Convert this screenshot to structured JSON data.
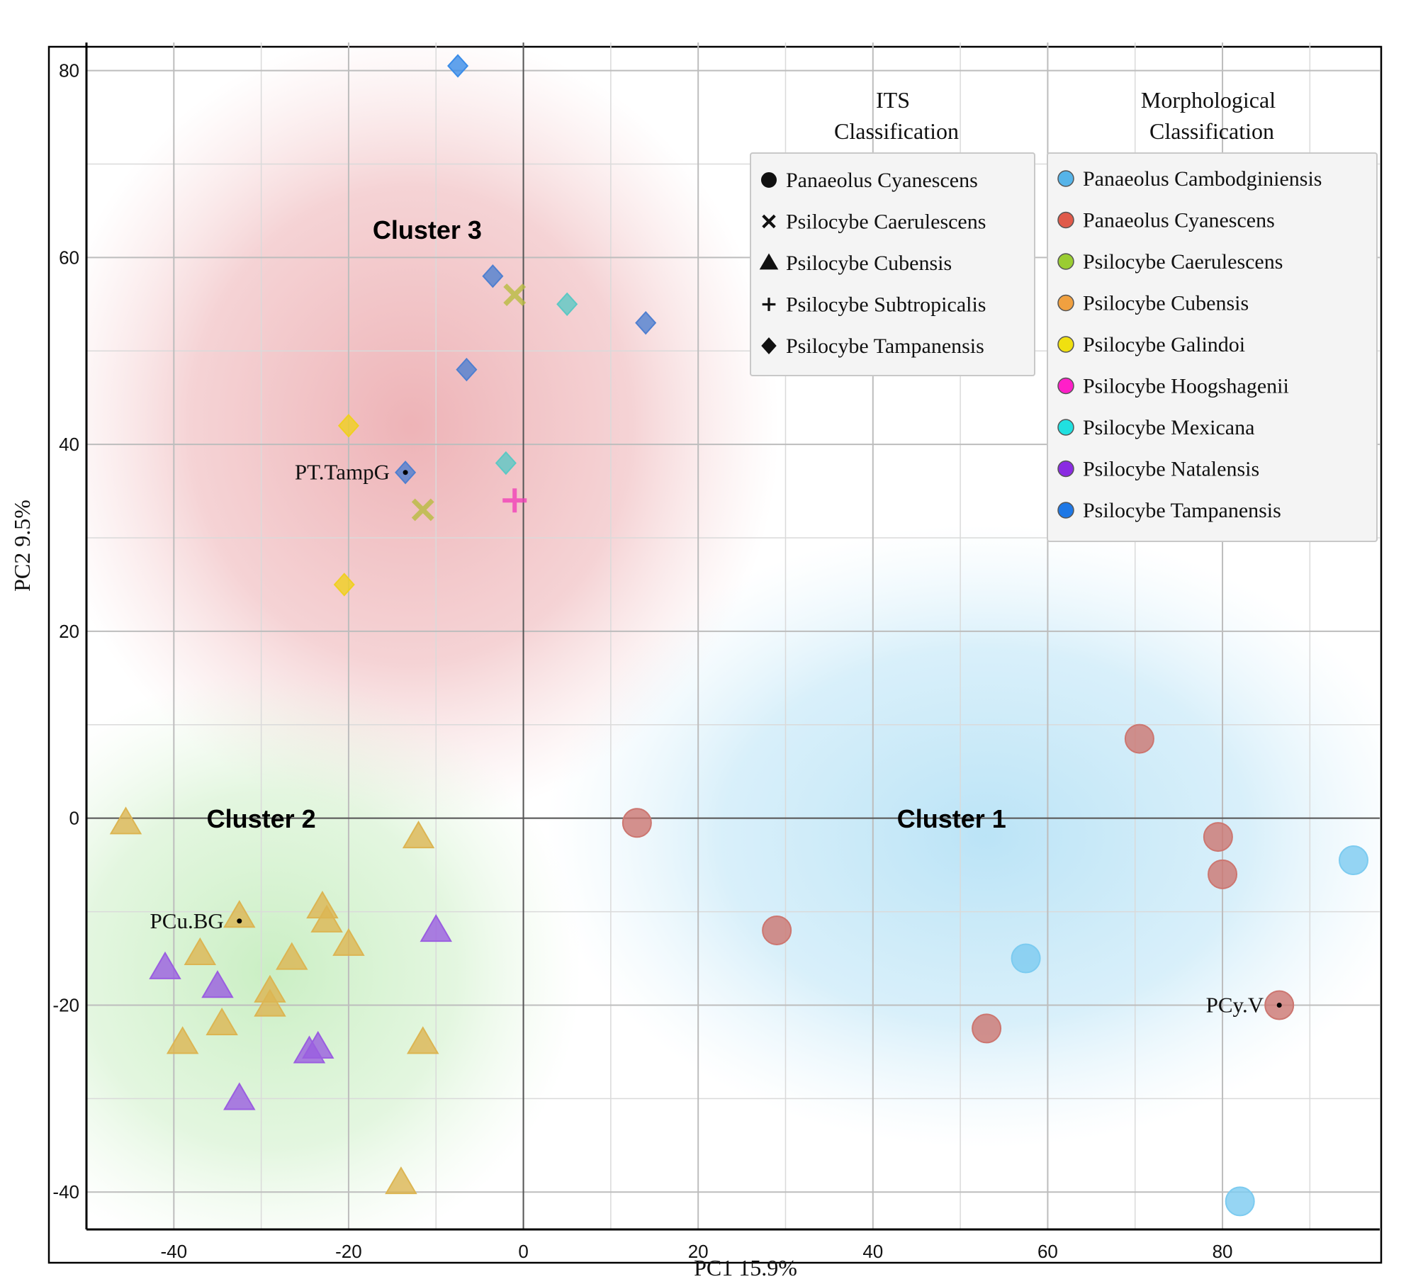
{
  "chart_data": {
    "type": "scatter",
    "xlabel": "PC1 15.9%",
    "ylabel": "PC2 9.5%",
    "xlim": [
      -50,
      98
    ],
    "ylim": [
      -44,
      83
    ],
    "x_ticks": [
      -40,
      -20,
      0,
      20,
      40,
      60,
      80
    ],
    "y_ticks": [
      -40,
      -20,
      0,
      20,
      40,
      60,
      80
    ],
    "grid": true,
    "clusters": [
      {
        "name": "Cluster 1",
        "label_at": [
          49,
          -1
        ]
      },
      {
        "name": "Cluster 2",
        "label_at": [
          -30,
          -1
        ]
      },
      {
        "name": "Cluster 3",
        "label_at": [
          -11,
          62
        ]
      }
    ],
    "annotations": [
      {
        "text": "PT.TampG",
        "at": [
          -13.5,
          37
        ]
      },
      {
        "text": "PCu.BG",
        "at": [
          -32.5,
          -11
        ]
      },
      {
        "text": "PCy.V",
        "at": [
          86.5,
          -20
        ]
      }
    ],
    "legend_its": {
      "title_line1": "ITS",
      "title_line2": "Classification",
      "items": [
        {
          "label": "Panaeolus Cyanescens",
          "shape": "circle"
        },
        {
          "label": "Psilocybe Caerulescens",
          "shape": "x"
        },
        {
          "label": "Psilocybe Cubensis",
          "shape": "triangle"
        },
        {
          "label": "Psilocybe Subtropicalis",
          "shape": "plus"
        },
        {
          "label": "Psilocybe Tampanensis",
          "shape": "diamond"
        }
      ]
    },
    "legend_morph": {
      "title_line1": "Morphological",
      "title_line2": "Classification",
      "items": [
        {
          "label": "Panaeolus Cambodginiensis",
          "color": "#56b4e9"
        },
        {
          "label": "Panaeolus Cyanescens",
          "color": "#e05a4a"
        },
        {
          "label": "Psilocybe Caerulescens",
          "color": "#9acd32"
        },
        {
          "label": "Psilocybe Cubensis",
          "color": "#f0a040"
        },
        {
          "label": "Psilocybe Galindoi",
          "color": "#f0e010"
        },
        {
          "label": "Psilocybe Hoogshagenii",
          "color": "#ff1fc8"
        },
        {
          "label": "Psilocybe Mexicana",
          "color": "#20e0e0"
        },
        {
          "label": "Psilocybe Natalensis",
          "color": "#8a2be2"
        },
        {
          "label": "Psilocybe Tampanensis",
          "color": "#1e78e6"
        }
      ]
    },
    "point_colors": {
      "circle_cambodginiensis": "#7ccbf0",
      "circle_cyanescens": "#cc7670",
      "tri_cubensis": "#dcb552",
      "tri_natalensis": "#9a5ee0",
      "diamond_tampanensis_a": "#3a8ce8",
      "diamond_tampanensis_b": "#4f7fd0",
      "diamond_mexicana": "#5cc8c4",
      "diamond_galindoi": "#f0d020",
      "x_caerulescens": "#b8bc40",
      "plus_subtropicalis": "#f040b8"
    },
    "points": [
      {
        "x": -7.5,
        "y": 80.5,
        "shape": "diamond",
        "color": "diamond_tampanensis_a"
      },
      {
        "x": -3.5,
        "y": 58,
        "shape": "diamond",
        "color": "diamond_tampanensis_b"
      },
      {
        "x": -1,
        "y": 56,
        "shape": "x",
        "color": "x_caerulescens"
      },
      {
        "x": 5,
        "y": 55,
        "shape": "diamond",
        "color": "diamond_mexicana"
      },
      {
        "x": 14,
        "y": 53,
        "shape": "diamond",
        "color": "diamond_tampanensis_b"
      },
      {
        "x": -6.5,
        "y": 48,
        "shape": "diamond",
        "color": "diamond_tampanensis_b"
      },
      {
        "x": -20,
        "y": 42,
        "shape": "diamond",
        "color": "diamond_galindoi"
      },
      {
        "x": -13.5,
        "y": 37,
        "shape": "diamond",
        "color": "diamond_tampanensis_b"
      },
      {
        "x": -2,
        "y": 38,
        "shape": "diamond",
        "color": "diamond_mexicana"
      },
      {
        "x": -11.5,
        "y": 33,
        "shape": "x",
        "color": "x_caerulescens"
      },
      {
        "x": -1,
        "y": 34,
        "shape": "plus",
        "color": "plus_subtropicalis"
      },
      {
        "x": -20.5,
        "y": 25,
        "shape": "diamond",
        "color": "diamond_galindoi"
      },
      {
        "x": 70.5,
        "y": 8.5,
        "shape": "circle",
        "color": "circle_cyanescens"
      },
      {
        "x": 13,
        "y": -0.5,
        "shape": "circle",
        "color": "circle_cyanescens"
      },
      {
        "x": 79.5,
        "y": -2,
        "shape": "circle",
        "color": "circle_cyanescens"
      },
      {
        "x": 95,
        "y": -4.5,
        "shape": "circle",
        "color": "circle_cambodginiensis"
      },
      {
        "x": 80,
        "y": -6,
        "shape": "circle",
        "color": "circle_cyanescens"
      },
      {
        "x": 29,
        "y": -12,
        "shape": "circle",
        "color": "circle_cyanescens"
      },
      {
        "x": 57.5,
        "y": -15,
        "shape": "circle",
        "color": "circle_cambodginiensis"
      },
      {
        "x": 86.5,
        "y": -20,
        "shape": "circle",
        "color": "circle_cyanescens"
      },
      {
        "x": 53,
        "y": -22.5,
        "shape": "circle",
        "color": "circle_cyanescens"
      },
      {
        "x": 82,
        "y": -41,
        "shape": "circle",
        "color": "circle_cambodginiensis"
      },
      {
        "x": -45.5,
        "y": -0.5,
        "shape": "triangle",
        "color": "tri_cubensis"
      },
      {
        "x": -12,
        "y": -2,
        "shape": "triangle",
        "color": "tri_cubensis"
      },
      {
        "x": -32.5,
        "y": -10.5,
        "shape": "triangle",
        "color": "tri_cubensis"
      },
      {
        "x": -23,
        "y": -9.5,
        "shape": "triangle",
        "color": "tri_cubensis"
      },
      {
        "x": -22.5,
        "y": -11,
        "shape": "triangle",
        "color": "tri_cubensis"
      },
      {
        "x": -10,
        "y": -12,
        "shape": "triangle",
        "color": "tri_natalensis"
      },
      {
        "x": -20,
        "y": -13.5,
        "shape": "triangle",
        "color": "tri_cubensis"
      },
      {
        "x": -37,
        "y": -14.5,
        "shape": "triangle",
        "color": "tri_cubensis"
      },
      {
        "x": -26.5,
        "y": -15,
        "shape": "triangle",
        "color": "tri_cubensis"
      },
      {
        "x": -41,
        "y": -16,
        "shape": "triangle",
        "color": "tri_natalensis"
      },
      {
        "x": -35,
        "y": -18,
        "shape": "triangle",
        "color": "tri_natalensis"
      },
      {
        "x": -29,
        "y": -18.5,
        "shape": "triangle",
        "color": "tri_cubensis"
      },
      {
        "x": -29,
        "y": -20,
        "shape": "triangle",
        "color": "tri_cubensis"
      },
      {
        "x": -34.5,
        "y": -22,
        "shape": "triangle",
        "color": "tri_cubensis"
      },
      {
        "x": -39,
        "y": -24,
        "shape": "triangle",
        "color": "tri_cubensis"
      },
      {
        "x": -11.5,
        "y": -24,
        "shape": "triangle",
        "color": "tri_cubensis"
      },
      {
        "x": -24.5,
        "y": -25,
        "shape": "triangle",
        "color": "tri_natalensis"
      },
      {
        "x": -23.5,
        "y": -24.5,
        "shape": "triangle",
        "color": "tri_natalensis"
      },
      {
        "x": -32.5,
        "y": -30,
        "shape": "triangle",
        "color": "tri_natalensis"
      },
      {
        "x": -14,
        "y": -39,
        "shape": "triangle",
        "color": "tri_cubensis"
      }
    ]
  }
}
